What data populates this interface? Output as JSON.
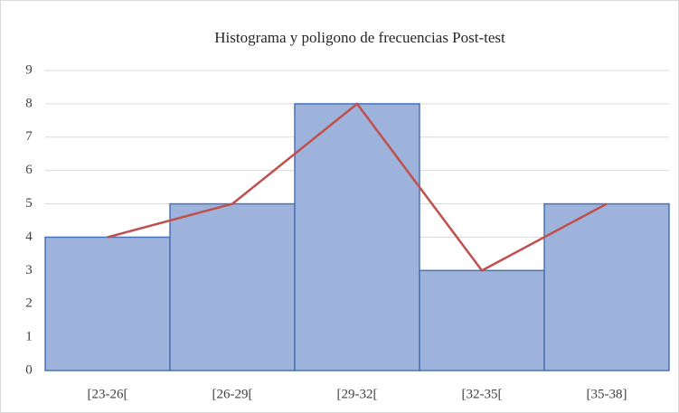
{
  "chart_data": {
    "type": "bar",
    "title": "Histograma  y poligono de frecuencias  Post-test",
    "categories": [
      "[23-26[",
      "[26-29[",
      "[29-32[",
      "[32-35[",
      "[35-38]"
    ],
    "values": [
      4,
      5,
      8,
      3,
      5
    ],
    "color": "#9db3db",
    "edge_color": "#4a72b8",
    "polygon": true,
    "line_color": "#c0504d",
    "ylim": [
      0,
      9
    ],
    "yticks": [
      0,
      1,
      2,
      3,
      4,
      5,
      6,
      7,
      8,
      9
    ],
    "grid": true
  }
}
